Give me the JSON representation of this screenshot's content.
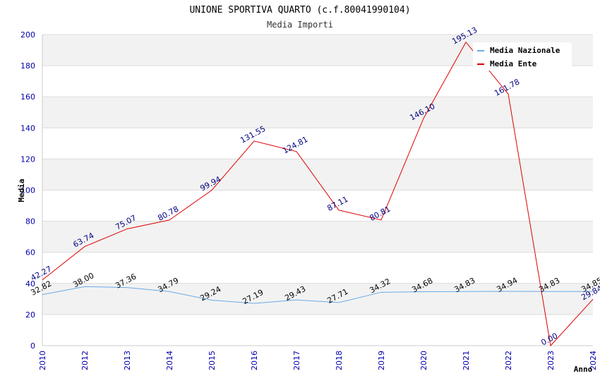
{
  "chart_data": {
    "type": "line",
    "title": "UNIONE SPORTIVA QUARTO (c.f.80041990104)",
    "subtitle": "Media Importi",
    "xlabel": "Anno",
    "ylabel": "Media",
    "ylim": [
      0,
      200
    ],
    "yticks": [
      0,
      20,
      40,
      60,
      80,
      100,
      120,
      140,
      160,
      180,
      200
    ],
    "categories": [
      "2010",
      "2012",
      "2013",
      "2014",
      "2015",
      "2016",
      "2017",
      "2018",
      "2019",
      "2020",
      "2021",
      "2022",
      "2023",
      "2024"
    ],
    "series": [
      {
        "name": "Media Nazionale",
        "color": "#6aaae8",
        "values": [
          32.82,
          38.0,
          37.36,
          34.79,
          29.24,
          27.19,
          29.43,
          27.71,
          34.32,
          34.68,
          34.83,
          34.94,
          34.83,
          34.85
        ],
        "labels": [
          "32.82",
          "38.00",
          "37.36",
          "34.79",
          "29.24",
          "27.19",
          "29.43",
          "27.71",
          "34.32",
          "34.68",
          "34.83",
          "34.94",
          "34.83",
          "34.85"
        ]
      },
      {
        "name": "Media Ente",
        "color": "#e00000",
        "values": [
          42.27,
          63.74,
          75.07,
          80.78,
          99.94,
          131.55,
          124.81,
          87.11,
          80.81,
          146.1,
          195.13,
          161.78,
          0.0,
          29.84
        ],
        "labels": [
          "42.27",
          "63.74",
          "75.07",
          "80.78",
          "99.94",
          "131.55",
          "124.81",
          "87.11",
          "80.81",
          "146.10",
          "195.13",
          "161.78",
          "0.00",
          "29.84"
        ]
      }
    ],
    "grid": true,
    "legend": "top-right"
  }
}
